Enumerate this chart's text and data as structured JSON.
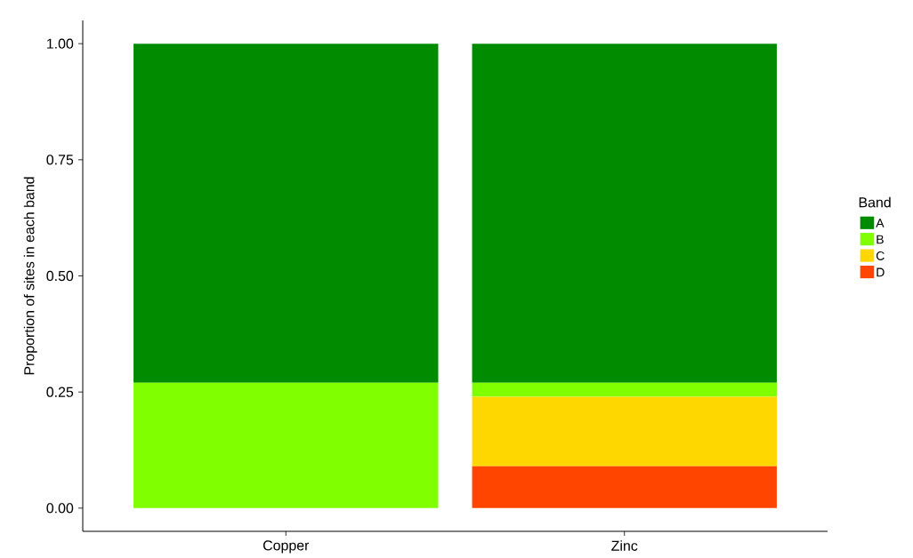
{
  "chart_data": {
    "type": "bar",
    "stacked": true,
    "ylabel": "Proportion of sites in each band",
    "legend_title": "Band",
    "legend": "right",
    "categories": [
      "Copper",
      "Zinc"
    ],
    "series": [
      {
        "name": "D",
        "color": "#ff4500",
        "values": [
          0,
          0.09
        ]
      },
      {
        "name": "C",
        "color": "#ffd700",
        "values": [
          0,
          0.15
        ]
      },
      {
        "name": "B",
        "color": "#7fff00",
        "values": [
          0.27,
          0.03
        ]
      },
      {
        "name": "A",
        "color": "#008b00",
        "values": [
          0.73,
          0.73
        ]
      }
    ],
    "ylim": [
      -0.05,
      1.05
    ],
    "yticks": [
      {
        "value": 0,
        "label": "0.00"
      },
      {
        "value": 0.25,
        "label": "0.25"
      },
      {
        "value": 0.5,
        "label": "0.50"
      },
      {
        "value": 0.75,
        "label": "0.75"
      },
      {
        "value": 1,
        "label": "1.00"
      }
    ],
    "grid": false
  }
}
